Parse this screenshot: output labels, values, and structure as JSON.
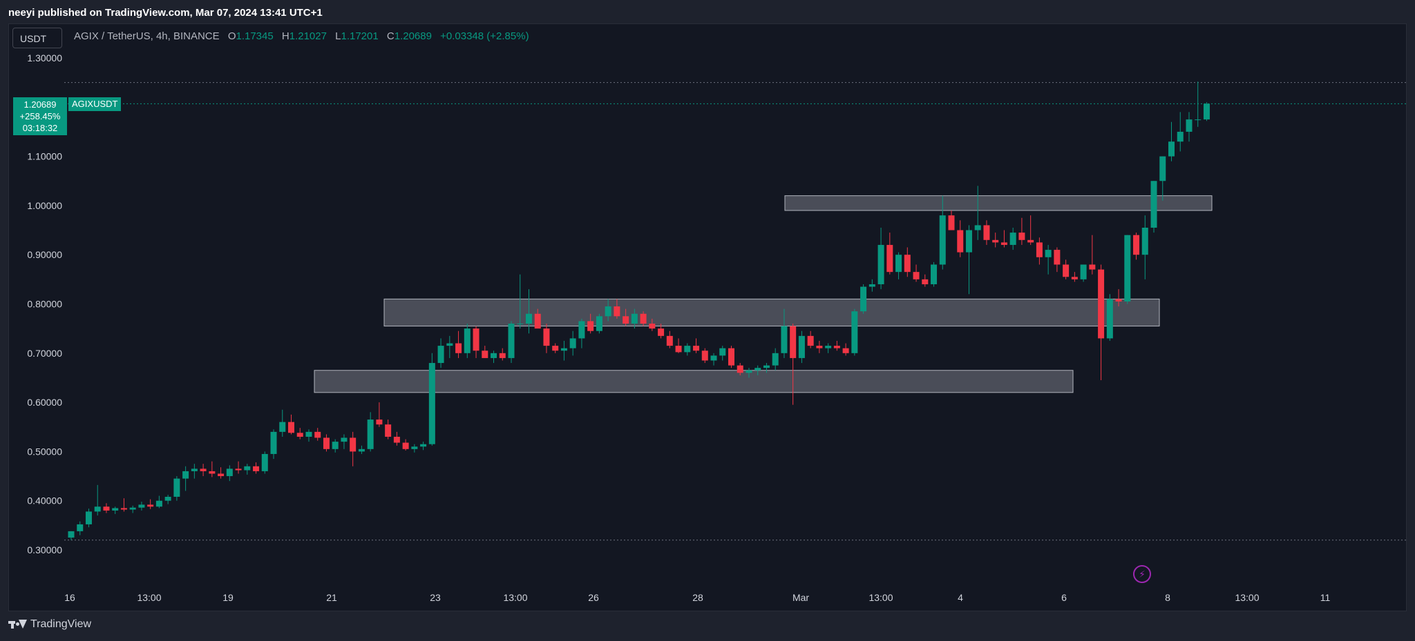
{
  "header": {
    "publisher_line": "neeyi published on TradingView.com, Mar 07, 2024 13:41 UTC+1"
  },
  "legend": {
    "symbol_text": "AGIX / TetherUS, 4h, BINANCE",
    "o_label": "O",
    "o_value": "1.17345",
    "h_label": "H",
    "h_value": "1.21027",
    "l_label": "L",
    "l_value": "1.17201",
    "c_label": "C",
    "c_value": "1.20689",
    "change": "+0.03348 (+2.85%)"
  },
  "unit_selector": "USDT",
  "last_price_badge": {
    "price": "1.20689",
    "change_pct": "+258.45%",
    "countdown": "03:18:32",
    "symbol": "AGIXUSDT"
  },
  "footer": {
    "brand": "TradingView"
  },
  "icons": {
    "alert": "lightning-bolt-icon"
  },
  "colors": {
    "up": "#089981",
    "down": "#f23645",
    "background": "#131722",
    "axis_text": "#d1d4dc",
    "zone_fill": "#5d606b",
    "zone_border": "#b2b5be"
  },
  "chart_data": {
    "type": "candlestick",
    "y_axis": {
      "min": 0.3,
      "max": 1.3,
      "ticks": [
        "1.30000",
        "1.10000",
        "1.00000",
        "0.90000",
        "0.80000",
        "0.70000",
        "0.60000",
        "0.50000",
        "0.40000",
        "0.30000"
      ]
    },
    "x_axis": {
      "ticks": [
        "16",
        "13:00",
        "19",
        "21",
        "23",
        "13:00",
        "26",
        "28",
        "Mar",
        "13:00",
        "4",
        "6",
        "8",
        "13:00",
        "11"
      ]
    },
    "support_resistance_zones": [
      {
        "start": "Feb 29",
        "end": "Mar 9",
        "low": 0.99,
        "high": 1.02
      },
      {
        "start": "Feb 22",
        "end": "Mar 8",
        "low": 0.755,
        "high": 0.81
      },
      {
        "start": "Feb 20",
        "end": "Mar 6",
        "low": 0.62,
        "high": 0.665
      }
    ],
    "reference_lines": [
      1.25,
      0.32
    ],
    "last_price": 1.20689,
    "candles_ohlc": [
      [
        0.325,
        0.338,
        0.32,
        0.338
      ],
      [
        0.338,
        0.358,
        0.33,
        0.352
      ],
      [
        0.352,
        0.384,
        0.346,
        0.378
      ],
      [
        0.378,
        0.432,
        0.37,
        0.388
      ],
      [
        0.388,
        0.395,
        0.375,
        0.38
      ],
      [
        0.38,
        0.388,
        0.373,
        0.385
      ],
      [
        0.385,
        0.405,
        0.378,
        0.382
      ],
      [
        0.382,
        0.39,
        0.375,
        0.386
      ],
      [
        0.386,
        0.398,
        0.38,
        0.392
      ],
      [
        0.392,
        0.403,
        0.383,
        0.388
      ],
      [
        0.388,
        0.41,
        0.385,
        0.4
      ],
      [
        0.4,
        0.412,
        0.393,
        0.408
      ],
      [
        0.408,
        0.45,
        0.4,
        0.445
      ],
      [
        0.445,
        0.47,
        0.42,
        0.46
      ],
      [
        0.46,
        0.475,
        0.445,
        0.465
      ],
      [
        0.465,
        0.475,
        0.45,
        0.46
      ],
      [
        0.46,
        0.48,
        0.448,
        0.455
      ],
      [
        0.455,
        0.468,
        0.445,
        0.45
      ],
      [
        0.45,
        0.472,
        0.44,
        0.465
      ],
      [
        0.465,
        0.48,
        0.455,
        0.462
      ],
      [
        0.462,
        0.475,
        0.453,
        0.47
      ],
      [
        0.47,
        0.478,
        0.455,
        0.46
      ],
      [
        0.46,
        0.5,
        0.455,
        0.495
      ],
      [
        0.495,
        0.545,
        0.485,
        0.54
      ],
      [
        0.54,
        0.585,
        0.53,
        0.56
      ],
      [
        0.56,
        0.575,
        0.535,
        0.538
      ],
      [
        0.538,
        0.548,
        0.525,
        0.53
      ],
      [
        0.53,
        0.545,
        0.52,
        0.54
      ],
      [
        0.54,
        0.548,
        0.522,
        0.528
      ],
      [
        0.528,
        0.535,
        0.5,
        0.505
      ],
      [
        0.505,
        0.525,
        0.498,
        0.52
      ],
      [
        0.52,
        0.535,
        0.505,
        0.528
      ],
      [
        0.528,
        0.54,
        0.47,
        0.5
      ],
      [
        0.5,
        0.512,
        0.495,
        0.505
      ],
      [
        0.505,
        0.58,
        0.5,
        0.565
      ],
      [
        0.565,
        0.6,
        0.55,
        0.555
      ],
      [
        0.555,
        0.565,
        0.525,
        0.53
      ],
      [
        0.53,
        0.54,
        0.512,
        0.518
      ],
      [
        0.518,
        0.525,
        0.502,
        0.505
      ],
      [
        0.505,
        0.515,
        0.498,
        0.51
      ],
      [
        0.51,
        0.52,
        0.503,
        0.515
      ],
      [
        0.515,
        0.7,
        0.512,
        0.68
      ],
      [
        0.68,
        0.73,
        0.67,
        0.715
      ],
      [
        0.715,
        0.735,
        0.69,
        0.72
      ],
      [
        0.72,
        0.745,
        0.69,
        0.7
      ],
      [
        0.7,
        0.76,
        0.69,
        0.75
      ],
      [
        0.75,
        0.755,
        0.69,
        0.705
      ],
      [
        0.705,
        0.715,
        0.69,
        0.69
      ],
      [
        0.69,
        0.705,
        0.68,
        0.7
      ],
      [
        0.7,
        0.71,
        0.685,
        0.69
      ],
      [
        0.69,
        0.765,
        0.68,
        0.76
      ],
      [
        0.76,
        0.86,
        0.75,
        0.76
      ],
      [
        0.76,
        0.83,
        0.74,
        0.78
      ],
      [
        0.78,
        0.79,
        0.76,
        0.75
      ],
      [
        0.75,
        0.76,
        0.7,
        0.715
      ],
      [
        0.715,
        0.72,
        0.7,
        0.705
      ],
      [
        0.705,
        0.725,
        0.685,
        0.71
      ],
      [
        0.71,
        0.745,
        0.695,
        0.73
      ],
      [
        0.73,
        0.77,
        0.71,
        0.765
      ],
      [
        0.765,
        0.78,
        0.74,
        0.745
      ],
      [
        0.745,
        0.78,
        0.74,
        0.775
      ],
      [
        0.775,
        0.81,
        0.765,
        0.795
      ],
      [
        0.795,
        0.81,
        0.77,
        0.775
      ],
      [
        0.775,
        0.79,
        0.755,
        0.76
      ],
      [
        0.76,
        0.79,
        0.75,
        0.78
      ],
      [
        0.78,
        0.785,
        0.755,
        0.76
      ],
      [
        0.76,
        0.77,
        0.745,
        0.75
      ],
      [
        0.75,
        0.76,
        0.73,
        0.735
      ],
      [
        0.735,
        0.745,
        0.71,
        0.715
      ],
      [
        0.715,
        0.73,
        0.7,
        0.702
      ],
      [
        0.702,
        0.72,
        0.695,
        0.715
      ],
      [
        0.715,
        0.73,
        0.7,
        0.705
      ],
      [
        0.705,
        0.71,
        0.68,
        0.685
      ],
      [
        0.685,
        0.7,
        0.675,
        0.695
      ],
      [
        0.695,
        0.715,
        0.685,
        0.71
      ],
      [
        0.71,
        0.715,
        0.67,
        0.675
      ],
      [
        0.675,
        0.68,
        0.655,
        0.66
      ],
      [
        0.66,
        0.67,
        0.65,
        0.665
      ],
      [
        0.665,
        0.675,
        0.655,
        0.67
      ],
      [
        0.67,
        0.68,
        0.66,
        0.675
      ],
      [
        0.675,
        0.71,
        0.665,
        0.7
      ],
      [
        0.7,
        0.79,
        0.69,
        0.755
      ],
      [
        0.755,
        0.76,
        0.595,
        0.69
      ],
      [
        0.69,
        0.745,
        0.68,
        0.735
      ],
      [
        0.735,
        0.745,
        0.71,
        0.715
      ],
      [
        0.715,
        0.725,
        0.7,
        0.71
      ],
      [
        0.71,
        0.72,
        0.7,
        0.715
      ],
      [
        0.715,
        0.725,
        0.705,
        0.71
      ],
      [
        0.71,
        0.72,
        0.695,
        0.7
      ],
      [
        0.7,
        0.79,
        0.695,
        0.785
      ],
      [
        0.785,
        0.84,
        0.78,
        0.835
      ],
      [
        0.835,
        0.85,
        0.825,
        0.84
      ],
      [
        0.84,
        0.955,
        0.83,
        0.92
      ],
      [
        0.92,
        0.945,
        0.86,
        0.865
      ],
      [
        0.865,
        0.905,
        0.85,
        0.9
      ],
      [
        0.9,
        0.915,
        0.855,
        0.865
      ],
      [
        0.865,
        0.88,
        0.845,
        0.85
      ],
      [
        0.85,
        0.86,
        0.835,
        0.84
      ],
      [
        0.84,
        0.885,
        0.835,
        0.88
      ],
      [
        0.88,
        1.02,
        0.87,
        0.98
      ],
      [
        0.98,
        0.99,
        0.95,
        0.95
      ],
      [
        0.95,
        0.97,
        0.895,
        0.905
      ],
      [
        0.905,
        0.96,
        0.82,
        0.95
      ],
      [
        0.95,
        1.04,
        0.93,
        0.96
      ],
      [
        0.96,
        0.97,
        0.92,
        0.93
      ],
      [
        0.93,
        0.945,
        0.915,
        0.925
      ],
      [
        0.925,
        0.95,
        0.915,
        0.92
      ],
      [
        0.92,
        0.955,
        0.91,
        0.945
      ],
      [
        0.945,
        0.975,
        0.92,
        0.93
      ],
      [
        0.93,
        0.98,
        0.92,
        0.925
      ],
      [
        0.925,
        0.935,
        0.88,
        0.895
      ],
      [
        0.895,
        0.92,
        0.86,
        0.91
      ],
      [
        0.91,
        0.915,
        0.865,
        0.88
      ],
      [
        0.88,
        0.89,
        0.85,
        0.855
      ],
      [
        0.855,
        0.865,
        0.845,
        0.85
      ],
      [
        0.85,
        0.88,
        0.845,
        0.88
      ],
      [
        0.88,
        0.94,
        0.86,
        0.87
      ],
      [
        0.87,
        0.88,
        0.645,
        0.73
      ],
      [
        0.73,
        0.82,
        0.725,
        0.81
      ],
      [
        0.81,
        0.83,
        0.795,
        0.805
      ],
      [
        0.805,
        0.94,
        0.8,
        0.94
      ],
      [
        0.94,
        0.945,
        0.89,
        0.9
      ],
      [
        0.9,
        0.98,
        0.85,
        0.955
      ],
      [
        0.955,
        1.05,
        0.945,
        1.05
      ],
      [
        1.05,
        1.1,
        1.01,
        1.1
      ],
      [
        1.1,
        1.17,
        1.09,
        1.13
      ],
      [
        1.13,
        1.19,
        1.11,
        1.15
      ],
      [
        1.15,
        1.19,
        1.13,
        1.175
      ],
      [
        1.175,
        1.252,
        1.16,
        1.175
      ],
      [
        1.175,
        1.21,
        1.172,
        1.207
      ]
    ]
  }
}
